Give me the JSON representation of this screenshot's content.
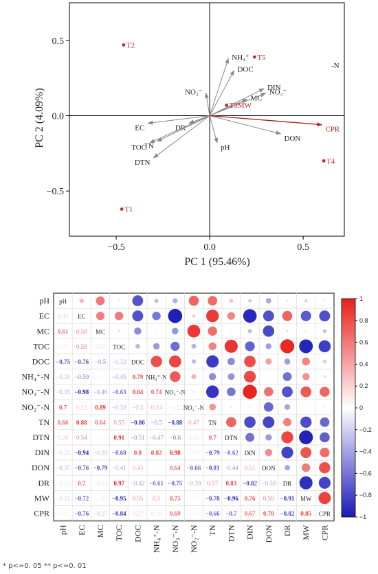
{
  "pca": {
    "type": "scatter",
    "xlabel": "PC 1 (95.46%)",
    "ylabel": "PC 2 (4.09%)",
    "xlim": [
      -0.75,
      0.72
    ],
    "ylim": [
      -0.8,
      0.75
    ],
    "xticks": [
      -0.5,
      0.0,
      0.5
    ],
    "yticks": [
      -0.5,
      0.0,
      0.5
    ],
    "xtick_labels": [
      "−0.5",
      "0.0",
      "0.5"
    ],
    "ytick_labels": [
      "−0.5",
      "0.0",
      "0.5"
    ],
    "samples": [
      {
        "label": "T2",
        "x": -0.46,
        "y": 0.47
      },
      {
        "label": "T5",
        "x": 0.24,
        "y": 0.39
      },
      {
        "label": "T3MW",
        "x": 0.09,
        "y": 0.07
      },
      {
        "label": "T4",
        "x": 0.61,
        "y": -0.3
      },
      {
        "label": "T1",
        "x": -0.47,
        "y": -0.62
      }
    ],
    "loadings": [
      {
        "label": "NH4+",
        "x": 0.1,
        "y": 0.38,
        "color": "#888888"
      },
      {
        "label": "DOC",
        "x": 0.13,
        "y": 0.3,
        "color": "#888888"
      },
      {
        "label": "NO2-",
        "x": -0.02,
        "y": 0.15,
        "color": "#888888"
      },
      {
        "label": "MC",
        "x": 0.2,
        "y": 0.11,
        "color": "#888888"
      },
      {
        "label": "DIN",
        "x": 0.29,
        "y": 0.18,
        "color": "#888888"
      },
      {
        "label": "NO3-",
        "x": 0.3,
        "y": 0.15,
        "color": "#888888"
      },
      {
        "label": "EC",
        "x": -0.33,
        "y": -0.05,
        "color": "#888888"
      },
      {
        "label": "DR",
        "x": -0.11,
        "y": -0.05,
        "color": "#888888"
      },
      {
        "label": "TN",
        "x": -0.28,
        "y": -0.17,
        "color": "#888888"
      },
      {
        "label": "TOC",
        "x": -0.32,
        "y": -0.18,
        "color": "#888888"
      },
      {
        "label": "DTN",
        "x": -0.3,
        "y": -0.28,
        "color": "#888888"
      },
      {
        "label": "pH",
        "x": 0.04,
        "y": -0.18,
        "color": "#888888"
      },
      {
        "label": "DON",
        "x": 0.38,
        "y": -0.12,
        "color": "#888888"
      },
      {
        "label": "CPR",
        "x": 0.6,
        "y": -0.06,
        "color": "#b3261e"
      }
    ],
    "edge_label": "-N"
  },
  "corr": {
    "type": "heatmap",
    "variables": [
      "pH",
      "EC",
      "MC",
      "TOC",
      "DOC",
      "NH₄⁺-N",
      "NO₃⁻-N",
      "NO₂⁻-N",
      "TN",
      "DTN",
      "DIN",
      "DON",
      "DR",
      "MW",
      "CPR"
    ],
    "lower": [
      [],
      [
        0.31
      ],
      [
        0.61,
        0.58
      ],
      [
        0.096,
        0.59,
        0.17
      ],
      [
        -0.75,
        -0.76,
        -0.5,
        -0.32
      ],
      [
        -0.28,
        -0.59,
        0.057,
        -0.45,
        0.79
      ],
      [
        -0.35,
        -0.98,
        -0.46,
        -0.63,
        0.84,
        0.74
      ],
      [
        0.7,
        0.23,
        0.89,
        -0.33,
        -0.3,
        0.34,
        -0.11
      ],
      [
        0.66,
        0.88,
        0.64,
        0.55,
        -0.86,
        -0.5,
        -0.88,
        0.47
      ],
      [
        0.28,
        0.54,
        -0.048,
        0.91,
        -0.51,
        -0.47,
        -0.6,
        -0.081,
        0.7
      ],
      [
        -0.23,
        -0.94,
        -0.29,
        -0.68,
        0.8,
        0.82,
        0.98,
        0.074,
        -0.79,
        -0.62
      ],
      [
        -0.37,
        -0.76,
        -0.79,
        -0.41,
        0.43,
        -0.023,
        0.64,
        -0.66,
        -0.81,
        -0.44,
        0.51
      ],
      [
        -0.12,
        0.7,
        -0.14,
        0.97,
        -0.42,
        -0.61,
        -0.75,
        -0.39,
        0.57,
        0.83,
        -0.82,
        -0.38
      ],
      [
        -0.21,
        -0.72,
        -0.086,
        -0.95,
        0.55,
        0.5,
        0.75,
        0.052,
        -0.78,
        -0.96,
        0.76,
        0.59,
        -0.91
      ],
      [
        0.092,
        -0.76,
        -0.27,
        -0.84,
        0.27,
        0.18,
        0.69,
        -0.052,
        -0.66,
        -0.7,
        0.67,
        0.78,
        -0.82,
        0.85
      ]
    ],
    "colorbar_ticks": [
      1,
      0.8,
      0.6,
      0.4,
      0.2,
      0,
      -0.2,
      -0.4,
      -0.6,
      -0.8,
      -1
    ],
    "colorbar_labels": [
      "1",
      "0.8",
      "0.6",
      "0.4",
      "0.2",
      "0",
      "−0.2",
      "−0.4",
      "−0.6",
      "−0.8",
      "−1"
    ],
    "colors": {
      "positive": "#e8201c",
      "neutral": "#ffffff",
      "negative": "#1a1ab8"
    }
  },
  "footnote": "*  p<=0. 05   **  p<=0. 01"
}
